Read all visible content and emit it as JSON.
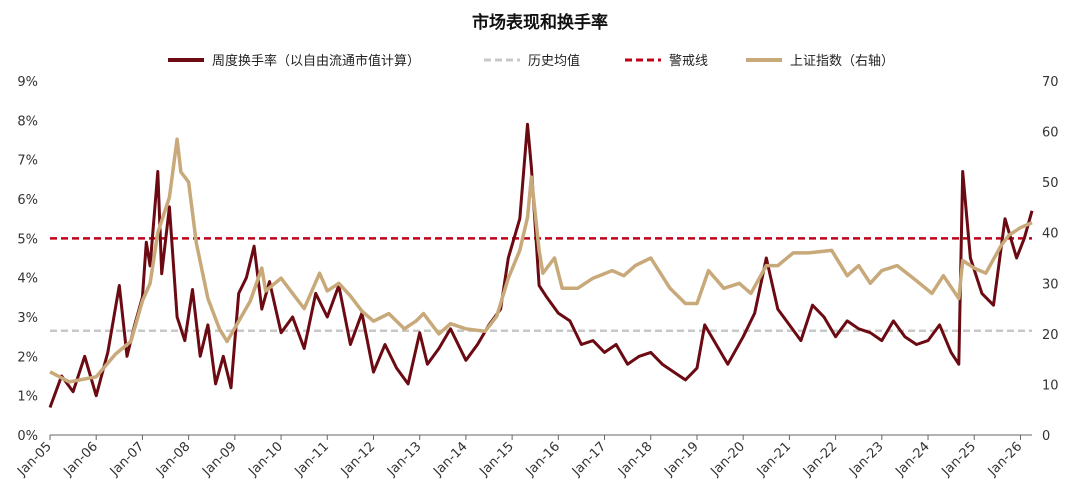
{
  "chart_data": {
    "type": "line",
    "title": "市场表现和换手率",
    "x_labels": [
      "Jan-05",
      "Jan-06",
      "Jan-07",
      "Jan-08",
      "Jan-09",
      "Jan-10",
      "Jan-11",
      "Jan-12",
      "Jan-13",
      "Jan-14",
      "Jan-15",
      "Jan-16",
      "Jan-17",
      "Jan-18",
      "Jan-19",
      "Jan-20",
      "Jan-21",
      "Jan-22",
      "Jan-23",
      "Jan-24",
      "Jan-25",
      "Jan-26"
    ],
    "x_range": [
      "2005-01",
      "2026-04"
    ],
    "y_left": {
      "min": 0,
      "max": 9,
      "ticks": [
        "0%",
        "1%",
        "2%",
        "3%",
        "4%",
        "5%",
        "6%",
        "7%",
        "8%",
        "9%"
      ]
    },
    "y_right": {
      "min": 0,
      "max": 70,
      "ticks": [
        "0",
        "10",
        "20",
        "30",
        "40",
        "50",
        "60",
        "70"
      ]
    },
    "legend_position": "top",
    "grid": false,
    "series": [
      {
        "name": "周度换手率（以自由流通市值计算）",
        "axis": "left",
        "color": "#6b0a12",
        "style": "solid",
        "x": [
          "2005-01",
          "2005-04",
          "2005-07",
          "2005-10",
          "2006-01",
          "2006-04",
          "2006-07",
          "2006-09",
          "2006-11",
          "2007-01",
          "2007-02",
          "2007-03",
          "2007-05",
          "2007-06",
          "2007-08",
          "2007-10",
          "2007-12",
          "2008-02",
          "2008-04",
          "2008-06",
          "2008-08",
          "2008-10",
          "2008-12",
          "2009-02",
          "2009-04",
          "2009-06",
          "2009-08",
          "2009-10",
          "2010-01",
          "2010-04",
          "2010-07",
          "2010-10",
          "2011-01",
          "2011-04",
          "2011-07",
          "2011-10",
          "2012-01",
          "2012-04",
          "2012-07",
          "2012-10",
          "2013-01",
          "2013-03",
          "2013-06",
          "2013-09",
          "2014-01",
          "2014-04",
          "2014-07",
          "2014-10",
          "2014-12",
          "2015-03",
          "2015-05",
          "2015-06",
          "2015-08",
          "2015-10",
          "2016-01",
          "2016-04",
          "2016-07",
          "2016-10",
          "2017-01",
          "2017-04",
          "2017-07",
          "2017-10",
          "2018-01",
          "2018-04",
          "2018-07",
          "2018-10",
          "2019-01",
          "2019-03",
          "2019-06",
          "2019-09",
          "2020-01",
          "2020-04",
          "2020-07",
          "2020-10",
          "2021-01",
          "2021-04",
          "2021-07",
          "2021-10",
          "2022-01",
          "2022-04",
          "2022-07",
          "2022-10",
          "2023-01",
          "2023-04",
          "2023-07",
          "2023-10",
          "2024-01",
          "2024-04",
          "2024-07",
          "2024-09",
          "2024-10",
          "2024-12",
          "2025-03",
          "2025-06",
          "2025-09",
          "2025-12",
          "2026-02",
          "2026-04"
        ],
        "values": [
          0.7,
          1.5,
          1.1,
          2.0,
          1.0,
          2.1,
          3.8,
          2.0,
          2.8,
          3.5,
          4.9,
          4.3,
          6.7,
          4.1,
          5.8,
          3.0,
          2.4,
          3.7,
          2.0,
          2.8,
          1.3,
          2.0,
          1.2,
          3.6,
          4.0,
          4.8,
          3.2,
          3.9,
          2.6,
          3.0,
          2.2,
          3.6,
          3.0,
          3.8,
          2.3,
          3.1,
          1.6,
          2.3,
          1.7,
          1.3,
          2.6,
          1.8,
          2.2,
          2.7,
          1.9,
          2.3,
          2.8,
          3.2,
          4.5,
          5.5,
          7.9,
          6.8,
          3.8,
          3.5,
          3.1,
          2.9,
          2.3,
          2.4,
          2.1,
          2.3,
          1.8,
          2.0,
          2.1,
          1.8,
          1.6,
          1.4,
          1.7,
          2.8,
          2.3,
          1.8,
          2.5,
          3.1,
          4.5,
          3.2,
          2.8,
          2.4,
          3.3,
          3.0,
          2.5,
          2.9,
          2.7,
          2.6,
          2.4,
          2.9,
          2.5,
          2.3,
          2.4,
          2.8,
          2.1,
          1.8,
          6.7,
          4.5,
          3.6,
          3.3,
          5.5,
          4.5,
          5.0,
          5.7
        ]
      },
      {
        "name": "历史均值",
        "axis": "left",
        "color": "#c8c8c8",
        "style": "dashed",
        "value": 2.65
      },
      {
        "name": "警戒线",
        "axis": "left",
        "color": "#c0001a",
        "style": "dashed",
        "value": 5.0
      },
      {
        "name": "上证指数（右轴）",
        "axis": "right",
        "color": "#c8a97a",
        "style": "solid",
        "x": [
          "2005-01",
          "2005-06",
          "2006-01",
          "2006-06",
          "2006-10",
          "2007-01",
          "2007-03",
          "2007-05",
          "2007-08",
          "2007-10",
          "2007-11",
          "2008-01",
          "2008-03",
          "2008-06",
          "2008-09",
          "2008-11",
          "2009-02",
          "2009-05",
          "2009-08",
          "2009-09",
          "2010-01",
          "2010-04",
          "2010-07",
          "2010-11",
          "2011-01",
          "2011-04",
          "2011-07",
          "2011-10",
          "2012-01",
          "2012-05",
          "2012-09",
          "2012-12",
          "2013-02",
          "2013-06",
          "2013-09",
          "2014-01",
          "2014-06",
          "2014-09",
          "2014-12",
          "2015-03",
          "2015-05",
          "2015-06",
          "2015-08",
          "2015-09",
          "2015-12",
          "2016-02",
          "2016-06",
          "2016-10",
          "2017-03",
          "2017-06",
          "2017-09",
          "2018-01",
          "2018-06",
          "2018-10",
          "2019-01",
          "2019-04",
          "2019-08",
          "2019-12",
          "2020-03",
          "2020-07",
          "2020-10",
          "2021-02",
          "2021-06",
          "2021-12",
          "2022-04",
          "2022-07",
          "2022-10",
          "2023-01",
          "2023-05",
          "2023-10",
          "2024-02",
          "2024-05",
          "2024-09",
          "2024-10",
          "2025-01",
          "2025-04",
          "2025-08",
          "2025-10",
          "2026-01",
          "2026-04"
        ],
        "values": [
          12.5,
          10.5,
          11.5,
          16.0,
          18.5,
          26.5,
          30.0,
          40.0,
          47.0,
          58.5,
          52.0,
          50.0,
          38.0,
          27.0,
          21.0,
          18.5,
          22.5,
          26.5,
          33.0,
          28.5,
          31.0,
          28.0,
          25.0,
          32.0,
          28.5,
          30.0,
          27.5,
          24.5,
          22.5,
          24.0,
          21.0,
          22.5,
          24.0,
          20.0,
          22.0,
          21.0,
          20.5,
          23.5,
          31.0,
          36.5,
          43.0,
          51.0,
          36.5,
          32.0,
          35.0,
          29.0,
          29.0,
          31.0,
          32.5,
          31.5,
          33.5,
          35.0,
          29.0,
          26.0,
          26.0,
          32.5,
          29.0,
          30.0,
          28.0,
          33.5,
          33.5,
          36.0,
          36.0,
          36.5,
          31.5,
          33.5,
          30.0,
          32.5,
          33.5,
          30.5,
          28.0,
          31.5,
          27.0,
          34.5,
          33.0,
          32.0,
          37.5,
          39.5,
          41.0,
          42.0
        ]
      }
    ]
  }
}
